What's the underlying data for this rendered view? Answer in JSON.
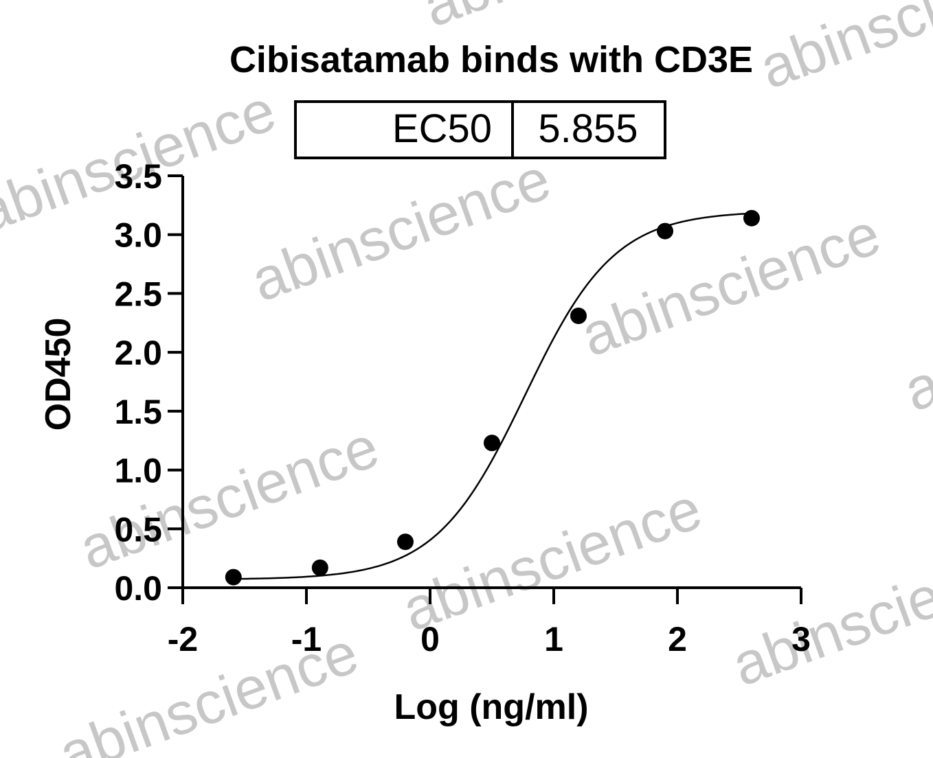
{
  "chart_data": {
    "type": "scatter",
    "title": "Cibisatamab binds with CD3E",
    "xlabel": "Log (ng/ml)",
    "ylabel": "OD450",
    "xlim": [
      -2,
      3
    ],
    "ylim": [
      0.0,
      3.5
    ],
    "x_ticks": [
      "-2",
      "-1",
      "0",
      "1",
      "2",
      "3"
    ],
    "y_ticks": [
      "0.0",
      "0.5",
      "1.0",
      "1.5",
      "2.0",
      "2.5",
      "3.0",
      "3.5"
    ],
    "points": {
      "x": [
        -1.59,
        -0.89,
        -0.2,
        0.5,
        1.2,
        1.9,
        2.6
      ],
      "y": [
        0.09,
        0.17,
        0.39,
        1.23,
        2.31,
        3.03,
        3.14
      ]
    },
    "fit_curve": {
      "type": "4PL",
      "bottom": 0.07,
      "top": 3.2,
      "log_ec50": 0.7675,
      "hill": 1.2
    },
    "ec50_table": {
      "label": "EC50",
      "value": "5.855"
    },
    "grid": false,
    "legend": "none",
    "colors": {
      "points": "#000000",
      "curve": "#000000",
      "axes": "#000000"
    }
  },
  "watermark": "abinscience"
}
